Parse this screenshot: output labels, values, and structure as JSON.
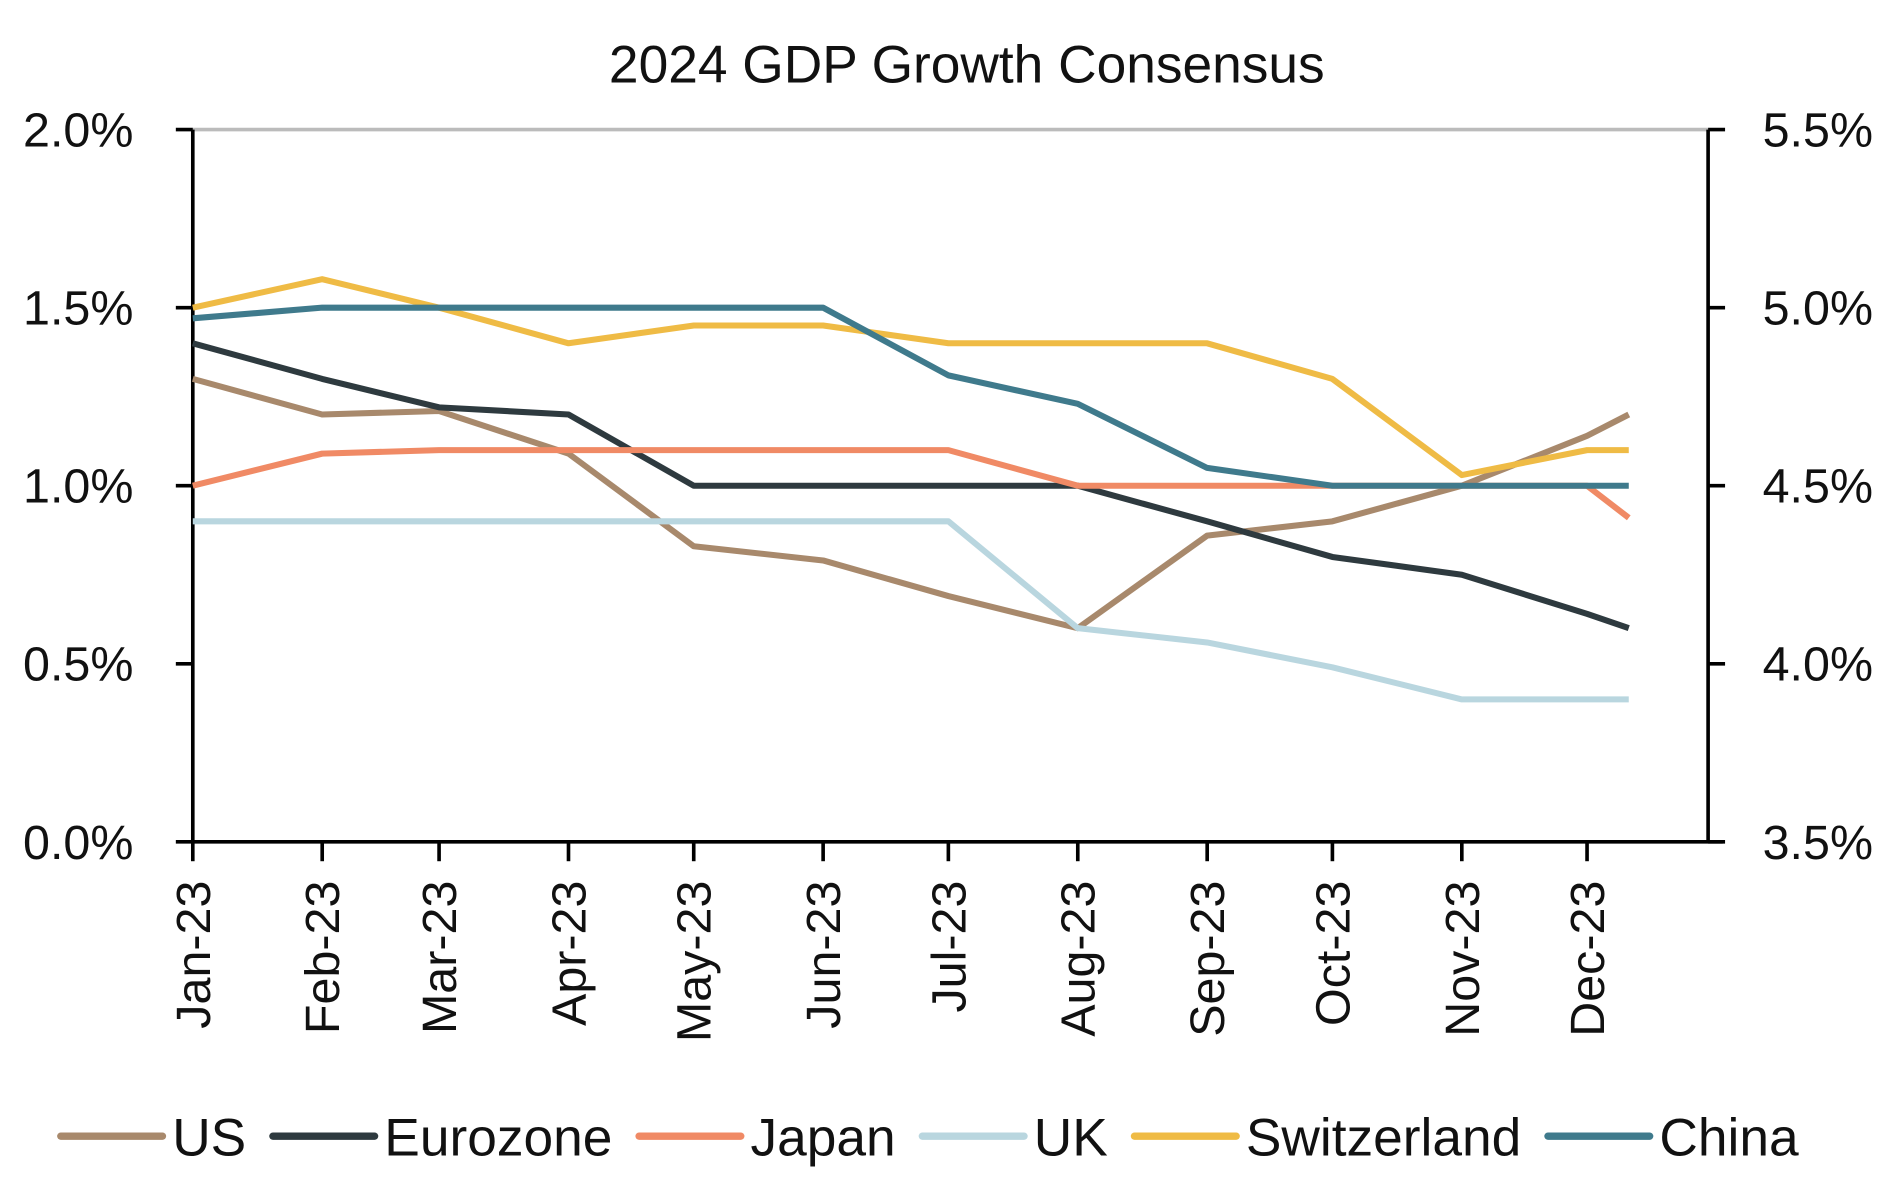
{
  "chart_data": {
    "type": "line",
    "title": "2024 GDP Growth Consensus",
    "xlabel": "",
    "ylabel": "",
    "x_ticks": [
      "Jan-23",
      "Feb-23",
      "Mar-23",
      "Apr-23",
      "May-23",
      "Jun-23",
      "Jul-23",
      "Aug-23",
      "Sep-23",
      "Oct-23",
      "Nov-23",
      "Dec-23"
    ],
    "x_tick_dates": [
      "2023-01-01",
      "2023-02-01",
      "2023-03-01",
      "2023-04-01",
      "2023-05-01",
      "2023-06-01",
      "2023-07-01",
      "2023-08-01",
      "2023-09-01",
      "2023-10-01",
      "2023-11-01",
      "2023-12-01"
    ],
    "x": [
      "2023-01-01",
      "2023-02-01",
      "2023-03-01",
      "2023-04-01",
      "2023-05-01",
      "2023-06-01",
      "2023-07-01",
      "2023-08-01",
      "2023-09-01",
      "2023-10-01",
      "2023-11-01",
      "2023-12-01",
      "2023-12-11"
    ],
    "xlim": [
      "2023-01-01",
      "2023-12-30"
    ],
    "y_left": {
      "lim": [
        0,
        2.0
      ],
      "ticks": [
        "0.0%",
        "0.5%",
        "1.0%",
        "1.5%",
        "2.0%"
      ],
      "tick_values": [
        0,
        0.5,
        1.0,
        1.5,
        2.0
      ]
    },
    "y_right": {
      "lim": [
        3.5,
        5.5
      ],
      "ticks": [
        "3.5%",
        "4.0%",
        "4.5%",
        "5.0%",
        "5.5%"
      ],
      "tick_values": [
        3.5,
        4.0,
        4.5,
        5.0,
        5.5
      ]
    },
    "grid": false,
    "legend_position": "bottom",
    "series": [
      {
        "name": "US",
        "axis": "left",
        "color": "#a8896c",
        "values": [
          1.3,
          1.2,
          1.21,
          1.09,
          0.83,
          0.79,
          0.69,
          0.6,
          0.86,
          0.9,
          1.0,
          1.14,
          1.2
        ]
      },
      {
        "name": "Eurozone",
        "axis": "left",
        "color": "#2e3a3f",
        "values": [
          1.4,
          1.3,
          1.22,
          1.2,
          1.0,
          1.0,
          1.0,
          1.0,
          0.9,
          0.8,
          0.75,
          0.64,
          0.6
        ]
      },
      {
        "name": "Japan",
        "axis": "left",
        "color": "#f08a65",
        "values": [
          1.0,
          1.09,
          1.1,
          1.1,
          1.1,
          1.1,
          1.1,
          1.0,
          1.0,
          1.0,
          1.0,
          1.0,
          0.91
        ]
      },
      {
        "name": "UK",
        "axis": "left",
        "color": "#b9d6df",
        "values": [
          0.9,
          0.9,
          0.9,
          0.9,
          0.9,
          0.9,
          0.9,
          0.6,
          0.56,
          0.49,
          0.4,
          0.4,
          0.4
        ]
      },
      {
        "name": "Switzerland",
        "axis": "left",
        "color": "#efbb45",
        "values": [
          1.5,
          1.58,
          1.5,
          1.4,
          1.45,
          1.45,
          1.4,
          1.4,
          1.4,
          1.3,
          1.03,
          1.1,
          1.1
        ]
      },
      {
        "name": "China",
        "axis": "right",
        "color": "#3f7a8c",
        "values": [
          4.97,
          5.0,
          5.0,
          5.0,
          5.0,
          5.0,
          4.81,
          4.73,
          4.55,
          4.5,
          4.5,
          4.5,
          4.5
        ]
      }
    ]
  }
}
